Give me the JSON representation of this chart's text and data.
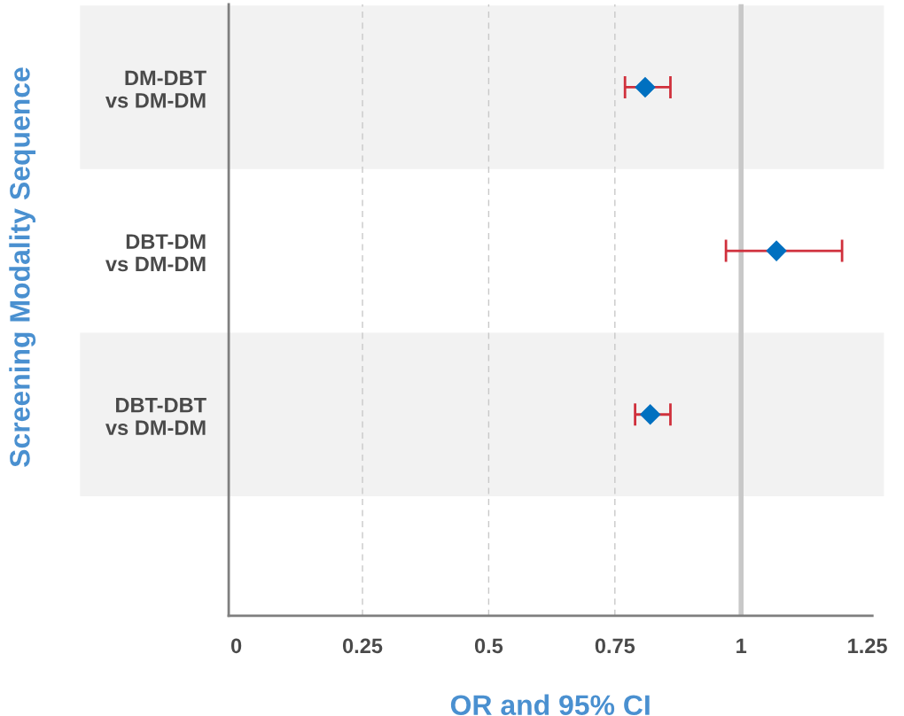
{
  "chart_data": {
    "type": "scatter",
    "orientation": "horizontal",
    "xlabel": "OR and 95% CI",
    "ylabel": "Screening Modality Sequence",
    "categories": [
      "DM-DBT\nvs DM-DM",
      "DBT-DM\nvs DM-DM",
      "DBT-DBT\nvs DM-DM"
    ],
    "color": "#0070c0",
    "values": [
      0.81,
      1.07,
      0.82
    ],
    "errors": [
      [
        0.77,
        0.86
      ],
      [
        0.97,
        1.2
      ],
      [
        0.79,
        0.86
      ]
    ],
    "marker": "diamond",
    "xlim": [
      -0.015,
      1.26
    ],
    "xticks": [
      0,
      0.25,
      0.5,
      0.75,
      1,
      1.25
    ],
    "grid": "x",
    "ref_lines": [
      {
        "axis": "x",
        "value": 1,
        "color": "#c8c8c8"
      }
    ]
  }
}
